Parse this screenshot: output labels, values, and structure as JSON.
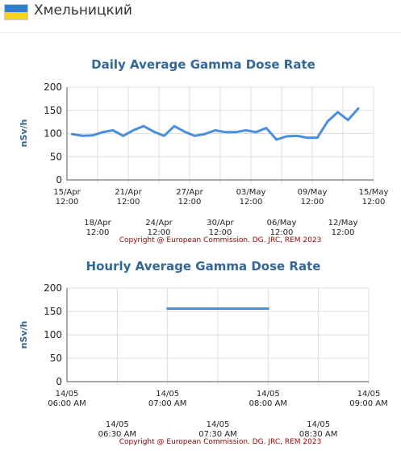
{
  "location": {
    "name": "Хмельницкий"
  },
  "chart_data": [
    {
      "type": "line",
      "title": "Daily Average Gamma Dose Rate",
      "ylabel": "nSv/h",
      "ylim": [
        0,
        200
      ],
      "yticks": [
        "0",
        "50",
        "100",
        "150",
        "200"
      ],
      "xlim": [
        "2023-04-15T12:00",
        "2023-05-15T12:00"
      ],
      "xticks": [
        {
          "x": "2023-04-15T12:00",
          "line1": "15/Apr",
          "line2": "12:00"
        },
        {
          "x": "2023-04-18T12:00",
          "line1": "18/Apr",
          "line2": "12:00"
        },
        {
          "x": "2023-04-21T12:00",
          "line1": "21/Apr",
          "line2": "12:00"
        },
        {
          "x": "2023-04-24T12:00",
          "line1": "24/Apr",
          "line2": "12:00"
        },
        {
          "x": "2023-04-27T12:00",
          "line1": "27/Apr",
          "line2": "12:00"
        },
        {
          "x": "2023-04-30T12:00",
          "line1": "30/Apr",
          "line2": "12:00"
        },
        {
          "x": "2023-05-03T12:00",
          "line1": "03/May",
          "line2": "12:00"
        },
        {
          "x": "2023-05-06T12:00",
          "line1": "06/May",
          "line2": "12:00"
        },
        {
          "x": "2023-05-09T12:00",
          "line1": "09/May",
          "line2": "12:00"
        },
        {
          "x": "2023-05-12T12:00",
          "line1": "12/May",
          "line2": "12:00"
        },
        {
          "x": "2023-05-15T12:00",
          "line1": "15/May",
          "line2": "12:00"
        }
      ],
      "series": [
        {
          "color": "#4a8ee0",
          "points": [
            [
              "2023-04-16T00:00",
              99
            ],
            [
              "2023-04-17T00:00",
              95
            ],
            [
              "2023-04-18T00:00",
              96
            ],
            [
              "2023-04-19T00:00",
              103
            ],
            [
              "2023-04-20T00:00",
              107
            ],
            [
              "2023-04-21T00:00",
              95
            ],
            [
              "2023-04-22T00:00",
              107
            ],
            [
              "2023-04-23T00:00",
              116
            ],
            [
              "2023-04-24T00:00",
              104
            ],
            [
              "2023-04-25T00:00",
              95
            ],
            [
              "2023-04-26T00:00",
              116
            ],
            [
              "2023-04-27T00:00",
              104
            ],
            [
              "2023-04-28T00:00",
              95
            ],
            [
              "2023-04-29T00:00",
              99
            ],
            [
              "2023-04-30T00:00",
              107
            ],
            [
              "2023-05-01T00:00",
              103
            ],
            [
              "2023-05-02T00:00",
              103
            ],
            [
              "2023-05-03T00:00",
              107
            ],
            [
              "2023-05-04T00:00",
              103
            ],
            [
              "2023-05-05T00:00",
              112
            ],
            [
              "2023-05-06T00:00",
              87
            ],
            [
              "2023-05-07T00:00",
              94
            ],
            [
              "2023-05-08T00:00",
              95
            ],
            [
              "2023-05-09T00:00",
              91
            ],
            [
              "2023-05-10T00:00",
              91
            ],
            [
              "2023-05-11T00:00",
              126
            ],
            [
              "2023-05-12T00:00",
              146
            ],
            [
              "2023-05-13T00:00",
              129
            ],
            [
              "2023-05-14T00:00",
              154
            ]
          ]
        }
      ],
      "copyright": "Copyright @ European Commission. DG. JRC, REM 2023"
    },
    {
      "type": "line",
      "title": "Hourly Average Gamma Dose Rate",
      "ylabel": "nSv/h",
      "ylim": [
        0,
        200
      ],
      "yticks": [
        "0",
        "50",
        "100",
        "150",
        "200"
      ],
      "xlim": [
        "2023-05-14T06:00",
        "2023-05-14T09:00"
      ],
      "xticks": [
        {
          "x": "2023-05-14T06:00",
          "line1": "14/05",
          "line2": "06:00 AM"
        },
        {
          "x": "2023-05-14T06:30",
          "line1": "14/05",
          "line2": "06:30 AM"
        },
        {
          "x": "2023-05-14T07:00",
          "line1": "14/05",
          "line2": "07:00 AM"
        },
        {
          "x": "2023-05-14T07:30",
          "line1": "14/05",
          "line2": "07:30 AM"
        },
        {
          "x": "2023-05-14T08:00",
          "line1": "14/05",
          "line2": "08:00 AM"
        },
        {
          "x": "2023-05-14T08:30",
          "line1": "14/05",
          "line2": "08:30 AM"
        },
        {
          "x": "2023-05-14T09:00",
          "line1": "14/05",
          "line2": "09:00 AM"
        }
      ],
      "series": [
        {
          "color": "#4a8ee0",
          "points": [
            [
              "2023-05-14T07:00",
              156
            ],
            [
              "2023-05-14T08:00",
              156
            ]
          ]
        }
      ],
      "copyright": "Copyright @ European Commission. DG. JRC, REM 2023"
    }
  ],
  "colors": {
    "title": "#336699",
    "copyright": "#990000",
    "axis_label": "#336699",
    "grid": "#dddddd"
  }
}
